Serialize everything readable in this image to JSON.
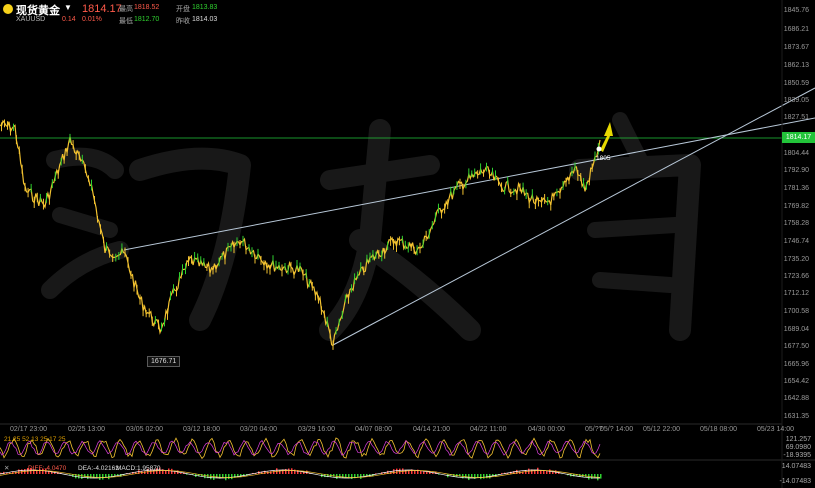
{
  "header": {
    "title": "现货黄金",
    "symbol": "XAUUSD",
    "price": "1814.17",
    "change": "0.14",
    "change_pct": "0.01%",
    "high_label": "最高",
    "high_value": "1818.52",
    "open_label": "开盘",
    "open_value": "1813.83",
    "low_label": "最低",
    "low_value": "1812.70",
    "prev_label": "昨收",
    "prev_value": "1814.03"
  },
  "y_axis": [
    "1845.76",
    "1686.21",
    "1873.67",
    "1862.13",
    "1850.59",
    "1839.05",
    "1827.51",
    "1815.98",
    "1804.44",
    "1792.90",
    "1781.36",
    "1769.82",
    "1758.28",
    "1746.74",
    "1735.20",
    "1723.66",
    "1712.12",
    "1700.58",
    "1689.04",
    "1677.50",
    "1665.96",
    "1654.42",
    "1642.88",
    "1631.35"
  ],
  "x_axis": [
    "02/17 23:00",
    "02/25 13:00",
    "03/05 02:00",
    "03/12 18:00",
    "03/20 04:00",
    "03/29 16:00",
    "04/07 08:00",
    "04/14 21:00",
    "04/22 11:00",
    "04/30 00:00",
    "05/??",
    "05/? 14:00",
    "05/12 22:00",
    "05/18 08:00",
    "05/23 14:00"
  ],
  "current_price_tag": "1814.17",
  "low_marker": "1676.71",
  "last_bar_label": "1805",
  "indicator1": {
    "label_text": "21.25  52.13  25.17  25",
    "scale": [
      "121.257",
      "69.0980",
      "-18.9395"
    ]
  },
  "indicator2": {
    "dif_label": "DIFF:-4.0470",
    "dea_label": "DEA:-4.02163",
    "macd_label": "MACD:1.95870",
    "scale": [
      "14.07483",
      "-14.07483"
    ]
  },
  "colors": {
    "up": "#f2c230",
    "down": "#2fd12f",
    "accent": "#22c43a",
    "trend": "#b8c8d8"
  }
}
